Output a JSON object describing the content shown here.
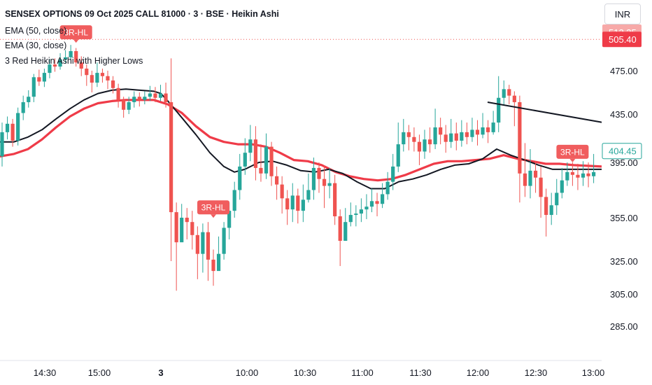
{
  "header": {
    "title": "SENSEX OPTIONS 09 Oct 2025 CALL 81000 · 3 · BSE · Heikin Ashi",
    "indicators": [
      "EMA (50, close)",
      "EMA (30, close)",
      "3 Red Heikin Ashi with Higher Lows"
    ],
    "currency": "INR"
  },
  "colors": {
    "up": "#26a69a",
    "down": "#ef5350",
    "ema50": "#131722",
    "ema30": "#ef3b48",
    "trendline": "#131722",
    "signal": "#f05d5e",
    "current_tag": "#26a69a"
  },
  "chart_data": {
    "type": "candlestick",
    "title": "SENSEX OPTIONS 09 Oct 2025 CALL 81000 · 3 · BSE · Heikin Ashi",
    "y_ticks": [
      "475.00",
      "435.00",
      "395.00",
      "355.00",
      "325.00",
      "305.00",
      "285.00"
    ],
    "x_ticks": [
      "14:30",
      "15:00",
      "3",
      "10:00",
      "10:30",
      "11:00",
      "11:30",
      "12:00",
      "12:30",
      "13:00"
    ],
    "price_labels": {
      "prev_high": "512.35",
      "prev_close": "505.40",
      "current": "404.45"
    },
    "candles": [
      [
        400,
        420,
        428,
        392
      ],
      [
        420,
        427,
        433,
        414
      ],
      [
        427,
        413,
        431,
        408
      ],
      [
        413,
        436,
        441,
        409
      ],
      [
        436,
        446,
        452,
        430
      ],
      [
        446,
        451,
        457,
        441
      ],
      [
        451,
        469,
        472,
        446
      ],
      [
        469,
        465,
        476,
        461
      ],
      [
        465,
        473,
        477,
        460
      ],
      [
        473,
        481,
        486,
        468
      ],
      [
        481,
        479,
        487,
        474
      ],
      [
        479,
        486,
        492,
        476
      ],
      [
        486,
        488,
        495,
        482
      ],
      [
        488,
        494,
        500,
        485
      ],
      [
        494,
        483,
        497,
        479
      ],
      [
        483,
        477,
        489,
        470
      ],
      [
        477,
        471,
        481,
        461
      ],
      [
        471,
        464,
        475,
        455
      ],
      [
        464,
        473,
        483,
        460
      ],
      [
        473,
        470,
        477,
        464
      ],
      [
        470,
        466,
        475,
        458
      ],
      [
        466,
        459,
        470,
        454
      ],
      [
        459,
        448,
        463,
        441
      ],
      [
        448,
        439,
        451,
        432
      ],
      [
        439,
        446,
        451,
        435
      ],
      [
        446,
        451,
        456,
        441
      ],
      [
        451,
        448,
        455,
        442
      ],
      [
        448,
        451,
        456,
        444
      ],
      [
        451,
        454,
        461,
        447
      ],
      [
        454,
        450,
        460,
        446
      ],
      [
        450,
        454,
        462,
        447
      ],
      [
        454,
        446,
        464,
        441
      ],
      [
        446,
        359,
        487,
        325
      ],
      [
        359,
        338,
        366,
        307
      ],
      [
        338,
        355,
        365,
        343
      ],
      [
        355,
        352,
        362,
        340
      ],
      [
        352,
        343,
        360,
        333
      ],
      [
        343,
        330,
        349,
        314
      ],
      [
        330,
        345,
        351,
        318
      ],
      [
        345,
        326,
        352,
        313
      ],
      [
        326,
        319,
        333,
        310
      ],
      [
        319,
        330,
        342,
        322
      ],
      [
        330,
        348,
        352,
        326
      ],
      [
        348,
        360,
        366,
        340
      ],
      [
        360,
        375,
        381,
        355
      ],
      [
        375,
        392,
        402,
        368
      ],
      [
        392,
        403,
        415,
        386
      ],
      [
        403,
        414,
        426,
        396
      ],
      [
        414,
        391,
        425,
        382
      ],
      [
        391,
        387,
        410,
        381
      ],
      [
        387,
        408,
        419,
        383
      ],
      [
        408,
        385,
        412,
        378
      ],
      [
        385,
        379,
        392,
        368
      ],
      [
        379,
        369,
        385,
        358
      ],
      [
        369,
        361,
        375,
        350
      ],
      [
        361,
        371,
        380,
        352
      ],
      [
        371,
        360,
        376,
        351
      ],
      [
        360,
        368,
        379,
        352
      ],
      [
        368,
        375,
        387,
        366
      ],
      [
        375,
        391,
        399,
        368
      ],
      [
        391,
        383,
        395,
        373
      ],
      [
        383,
        378,
        393,
        362
      ],
      [
        378,
        380,
        391,
        369
      ],
      [
        380,
        356,
        386,
        350
      ],
      [
        356,
        339,
        361,
        322
      ],
      [
        339,
        352,
        362,
        344
      ],
      [
        352,
        357,
        366,
        349
      ],
      [
        357,
        358,
        364,
        349
      ],
      [
        358,
        361,
        369,
        352
      ],
      [
        361,
        363,
        372,
        354
      ],
      [
        363,
        367,
        376,
        359
      ],
      [
        367,
        365,
        373,
        356
      ],
      [
        365,
        372,
        380,
        362
      ],
      [
        372,
        381,
        388,
        368
      ],
      [
        381,
        392,
        402,
        375
      ],
      [
        392,
        410,
        428,
        388
      ],
      [
        410,
        420,
        431,
        404
      ],
      [
        420,
        416,
        426,
        405
      ],
      [
        416,
        412,
        424,
        404
      ],
      [
        412,
        404,
        418,
        393
      ],
      [
        404,
        414,
        422,
        398
      ],
      [
        414,
        410,
        424,
        403
      ],
      [
        410,
        424,
        440,
        406
      ],
      [
        424,
        418,
        432,
        410
      ],
      [
        418,
        412,
        426,
        403
      ],
      [
        412,
        419,
        431,
        407
      ],
      [
        419,
        413,
        428,
        405
      ],
      [
        413,
        420,
        430,
        408
      ],
      [
        420,
        416,
        428,
        410
      ],
      [
        416,
        422,
        432,
        412
      ],
      [
        422,
        418,
        430,
        409
      ],
      [
        418,
        424,
        436,
        415
      ],
      [
        424,
        420,
        430,
        411
      ],
      [
        420,
        428,
        438,
        418
      ],
      [
        428,
        450,
        470,
        420
      ],
      [
        450,
        458,
        466,
        443
      ],
      [
        458,
        452,
        462,
        444
      ],
      [
        452,
        446,
        456,
        425
      ],
      [
        446,
        387,
        452,
        366
      ],
      [
        387,
        378,
        411,
        370
      ],
      [
        378,
        389,
        406,
        369
      ],
      [
        389,
        384,
        396,
        373
      ],
      [
        384,
        370,
        392,
        355
      ],
      [
        370,
        357,
        376,
        342
      ],
      [
        357,
        364,
        373,
        350
      ],
      [
        364,
        373,
        383,
        357
      ],
      [
        373,
        382,
        391,
        369
      ],
      [
        382,
        388,
        395,
        378
      ],
      [
        388,
        386,
        395,
        378
      ],
      [
        386,
        384,
        394,
        375
      ],
      [
        384,
        387,
        396,
        378
      ],
      [
        387,
        385,
        395,
        377
      ],
      [
        385,
        388,
        402,
        380
      ]
    ],
    "ema50": [
      [
        0,
        412
      ],
      [
        20,
        412
      ],
      [
        40,
        416
      ],
      [
        60,
        422
      ],
      [
        80,
        431
      ],
      [
        100,
        440
      ],
      [
        120,
        448
      ],
      [
        140,
        454
      ],
      [
        160,
        457
      ],
      [
        180,
        458
      ],
      [
        200,
        457
      ],
      [
        220,
        456
      ],
      [
        230,
        454
      ],
      [
        240,
        447
      ],
      [
        260,
        432
      ],
      [
        280,
        418
      ],
      [
        300,
        403
      ],
      [
        320,
        392
      ],
      [
        335,
        388
      ],
      [
        350,
        390
      ],
      [
        370,
        395
      ],
      [
        390,
        396
      ],
      [
        410,
        393
      ],
      [
        430,
        389
      ],
      [
        450,
        388
      ],
      [
        470,
        390
      ],
      [
        490,
        387
      ],
      [
        510,
        381
      ],
      [
        530,
        376
      ],
      [
        550,
        376
      ],
      [
        570,
        381
      ],
      [
        590,
        383
      ],
      [
        610,
        386
      ],
      [
        630,
        390
      ],
      [
        650,
        393
      ],
      [
        670,
        394
      ],
      [
        690,
        398
      ],
      [
        710,
        406
      ],
      [
        730,
        401
      ],
      [
        750,
        397
      ],
      [
        770,
        393
      ],
      [
        790,
        390
      ],
      [
        810,
        390
      ],
      [
        830,
        390
      ],
      [
        860,
        390
      ]
    ],
    "ema30": [
      [
        0,
        400
      ],
      [
        20,
        402
      ],
      [
        40,
        406
      ],
      [
        60,
        414
      ],
      [
        80,
        424
      ],
      [
        100,
        433
      ],
      [
        120,
        440
      ],
      [
        140,
        445
      ],
      [
        160,
        447
      ],
      [
        180,
        448
      ],
      [
        200,
        448
      ],
      [
        220,
        448
      ],
      [
        240,
        444
      ],
      [
        260,
        436
      ],
      [
        280,
        425
      ],
      [
        300,
        416
      ],
      [
        320,
        412
      ],
      [
        340,
        410
      ],
      [
        360,
        410
      ],
      [
        380,
        408
      ],
      [
        400,
        403
      ],
      [
        420,
        397
      ],
      [
        440,
        396
      ],
      [
        460,
        393
      ],
      [
        480,
        388
      ],
      [
        500,
        385
      ],
      [
        520,
        383
      ],
      [
        540,
        382
      ],
      [
        560,
        383
      ],
      [
        580,
        386
      ],
      [
        600,
        390
      ],
      [
        620,
        394
      ],
      [
        640,
        396
      ],
      [
        660,
        396
      ],
      [
        680,
        397
      ],
      [
        700,
        398
      ],
      [
        720,
        401
      ],
      [
        740,
        398
      ],
      [
        760,
        396
      ],
      [
        780,
        394
      ],
      [
        800,
        394
      ],
      [
        820,
        393
      ],
      [
        860,
        392
      ]
    ],
    "trendline": [
      [
        697,
        146
      ],
      [
        862,
        175
      ]
    ],
    "signals": [
      {
        "label": "3R-HL",
        "index": 14,
        "price": 498,
        "side": "above"
      },
      {
        "label": "3R-HL",
        "index": 40,
        "price": 352,
        "side": "above"
      },
      {
        "label": "3R-HL",
        "index": 108,
        "price": 392,
        "side": "above"
      }
    ]
  }
}
